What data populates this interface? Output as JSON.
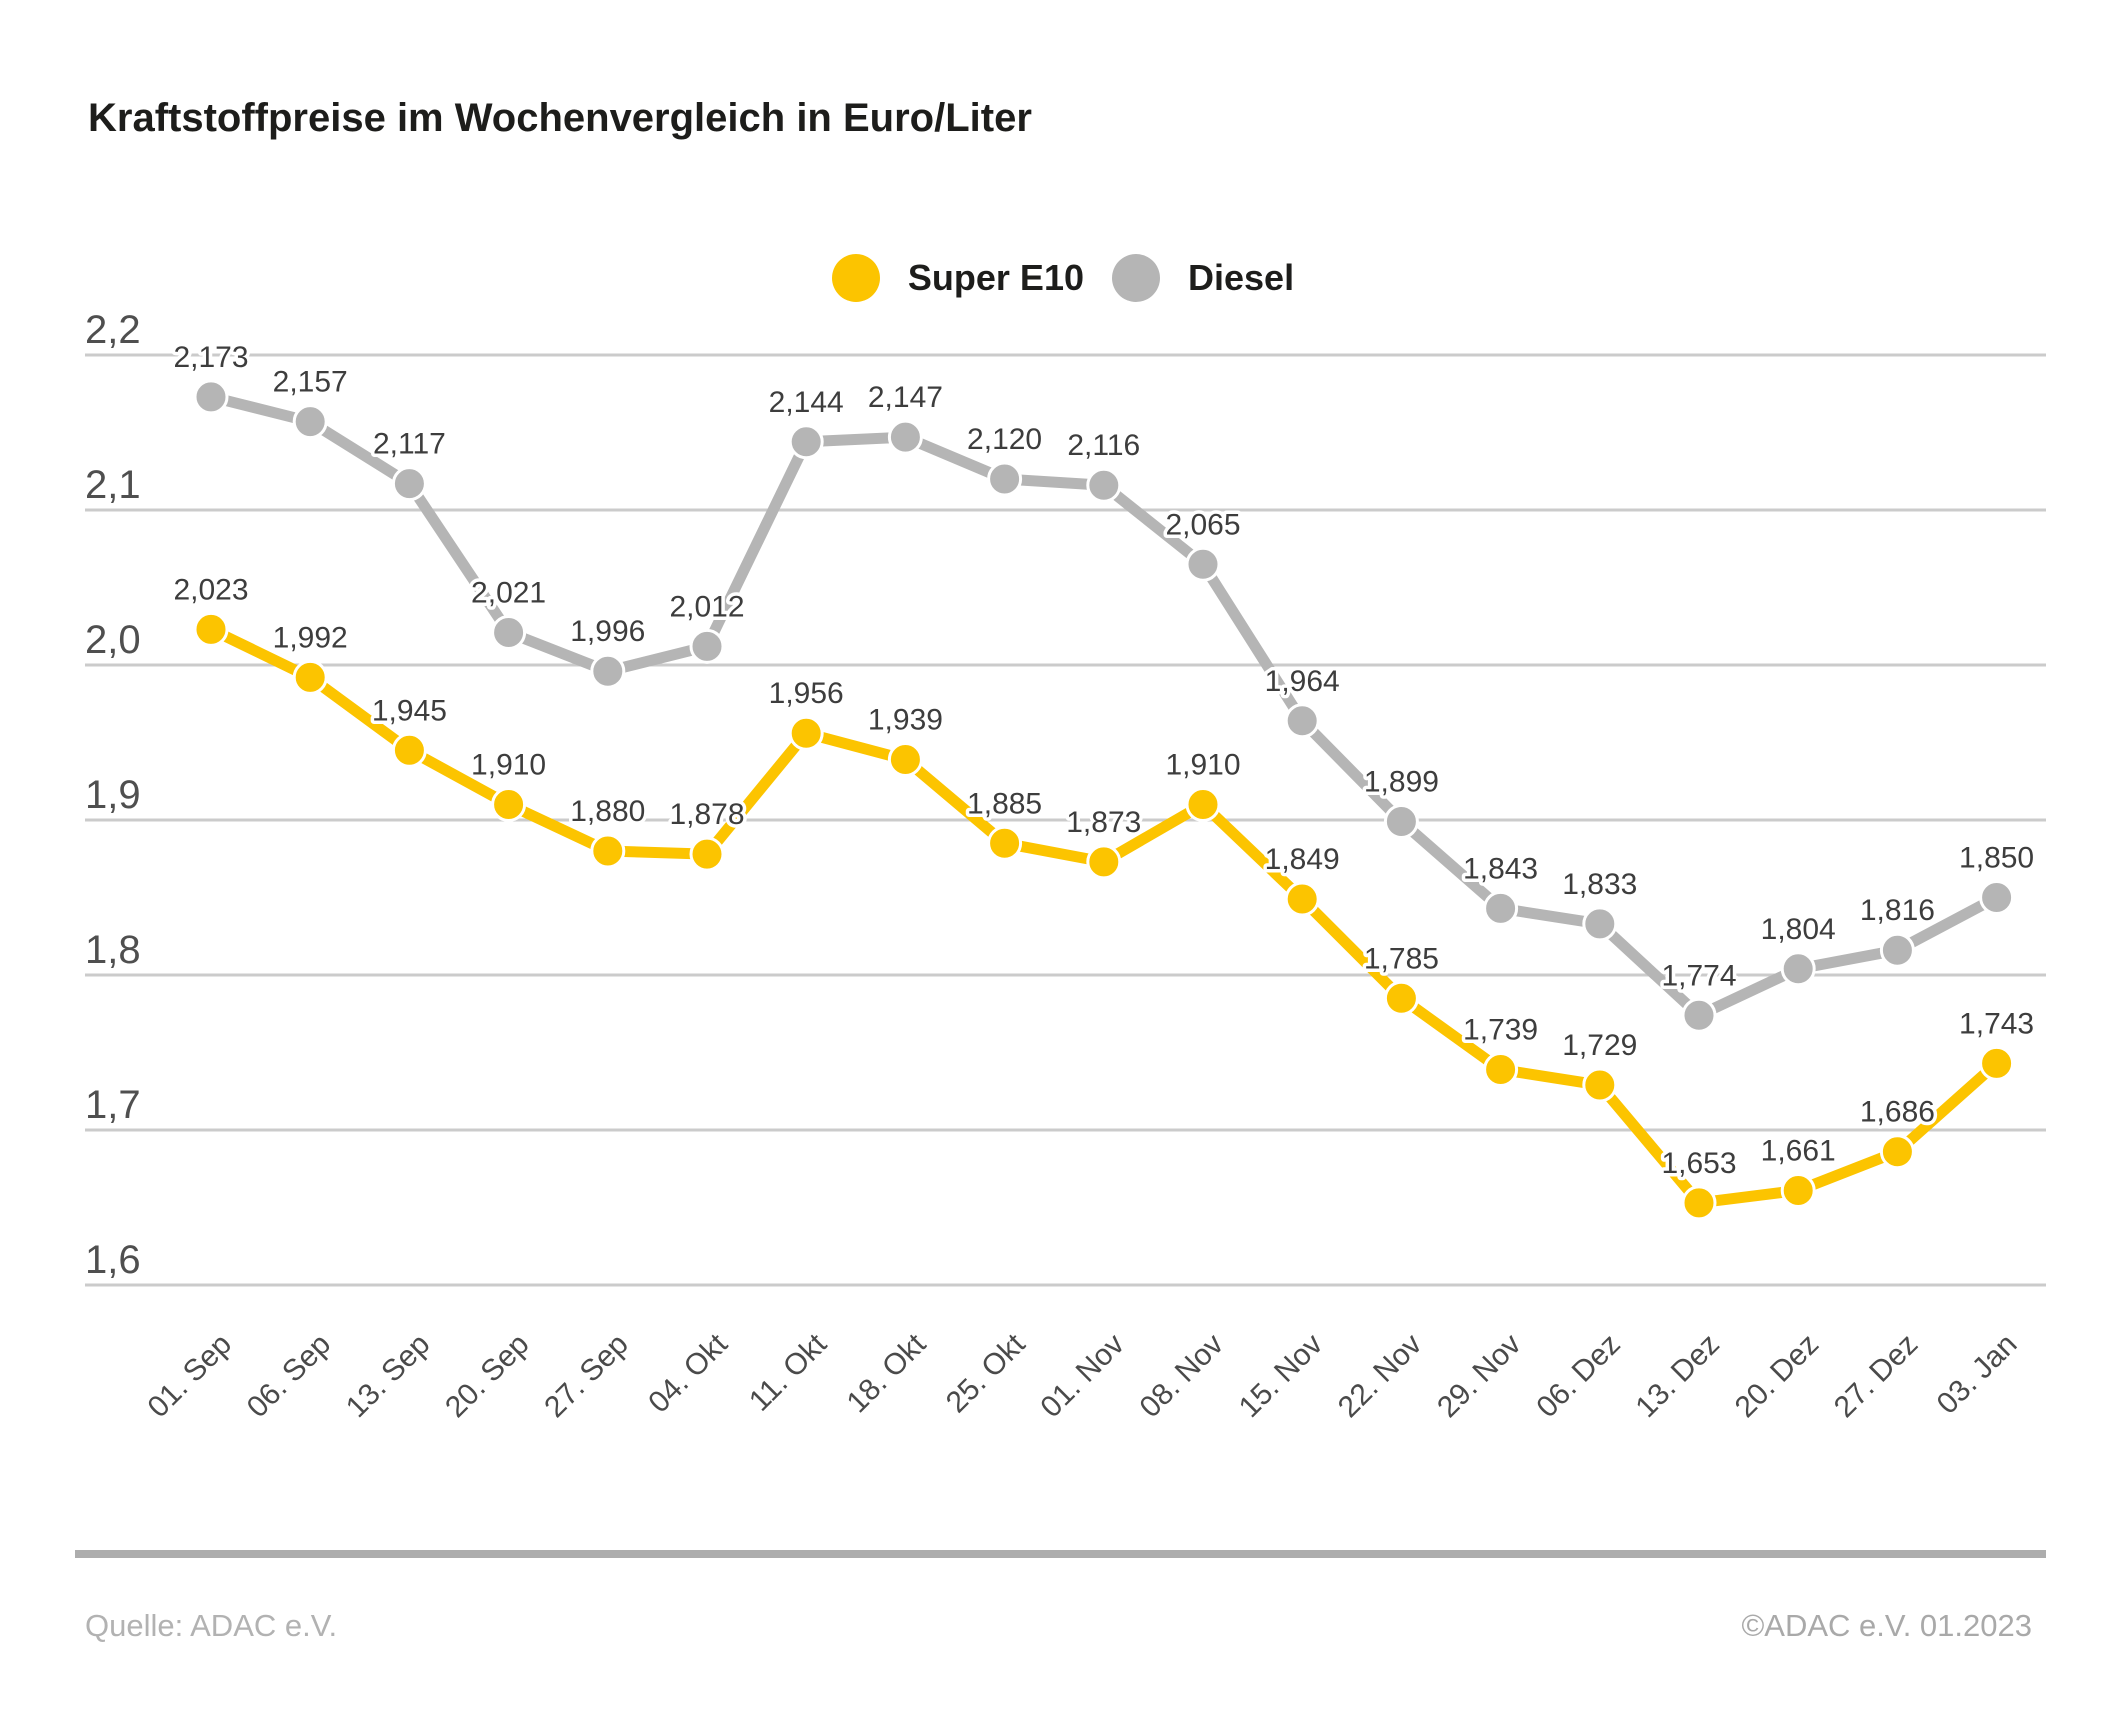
{
  "title": "Kraftstoffpreise im Wochenvergleich in Euro/Liter",
  "legend": {
    "items": [
      {
        "label": "Super E10",
        "color": "#fcc400"
      },
      {
        "label": "Diesel",
        "color": "#b5b5b5"
      }
    ]
  },
  "footer": {
    "source": "Quelle: ADAC e.V.",
    "copyright": "©ADAC e.V.  01.2023"
  },
  "colors": {
    "background": "#ffffff",
    "grid": "#cbcbcb",
    "axis_tick_text": "#4f4f4f",
    "x_tick_text": "#4a4a4a",
    "data_label_text": "#3d3d3d",
    "title_text": "#1d1d1b",
    "footer_bar": "#adadad",
    "footer_text": "#b2b2b2",
    "super_e10": "#fcc400",
    "diesel": "#b5b5b5"
  },
  "chart_data": {
    "type": "line",
    "title": "Kraftstoffpreise im Wochenvergleich in Euro/Liter",
    "categories": [
      "01. Sep",
      "06. Sep",
      "13. Sep",
      "20. Sep",
      "27. Sep",
      "04. Okt",
      "11. Okt",
      "18. Okt",
      "25. Okt",
      "01. Nov",
      "08. Nov",
      "15. Nov",
      "22. Nov",
      "29. Nov",
      "06. Dez",
      "13. Dez",
      "20. Dez",
      "27. Dez",
      "03. Jan"
    ],
    "series": [
      {
        "name": "Super E10",
        "color": "#fcc400",
        "values": [
          2.023,
          1.992,
          1.945,
          1.91,
          1.88,
          1.878,
          1.956,
          1.939,
          1.885,
          1.873,
          1.91,
          1.849,
          1.785,
          1.739,
          1.729,
          1.653,
          1.661,
          1.686,
          1.743
        ]
      },
      {
        "name": "Diesel",
        "color": "#b5b5b5",
        "values": [
          2.173,
          2.157,
          2.117,
          2.021,
          1.996,
          2.012,
          2.144,
          2.147,
          2.12,
          2.116,
          2.065,
          1.964,
          1.899,
          1.843,
          1.833,
          1.774,
          1.804,
          1.816,
          1.85
        ]
      }
    ],
    "xlabel": "",
    "ylabel": "",
    "ylim": [
      1.6,
      2.2
    ],
    "y_ticks": [
      "2,2",
      "2,1",
      "2,0",
      "1,9",
      "1,8",
      "1,7",
      "1,6"
    ],
    "grid": true,
    "legend_position": "top-center",
    "decimal_separator": ",",
    "value_decimals": 3
  }
}
